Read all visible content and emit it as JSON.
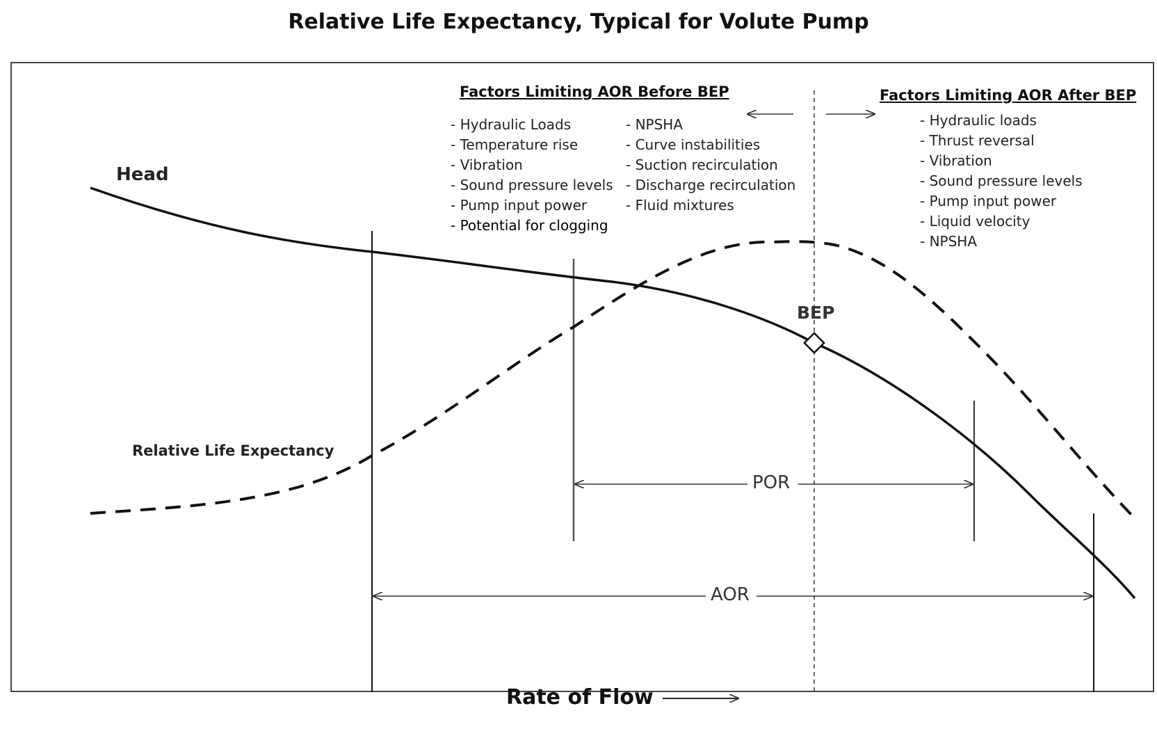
{
  "title": "Relative Life Expectancy, Typical for Volute Pump",
  "xlabel": "Rate of Flow",
  "labels": {
    "head": "Head",
    "life": "Relative Life Expectancy",
    "bep": "BEP",
    "por": "POR",
    "aor": "AOR"
  },
  "before_bep": {
    "heading": "Factors Limiting AOR Before BEP",
    "col1": [
      "Hydraulic Loads",
      "Temperature rise",
      "Vibration",
      "Sound pressure levels",
      "Pump input power",
      "Potential for clogging"
    ],
    "col2": [
      "NPSHA",
      "Curve instabilities",
      "Suction recirculation",
      "Discharge recirculation",
      "Fluid mixtures"
    ]
  },
  "after_bep": {
    "heading": "Factors Limiting AOR After BEP",
    "items": [
      "Hydraulic loads",
      "Thrust reversal",
      "Vibration",
      "Sound pressure levels",
      "Pump input power",
      "Liquid velocity",
      "NPSHA"
    ]
  },
  "colors": {
    "line": "#111111",
    "gray": "#555555"
  }
}
